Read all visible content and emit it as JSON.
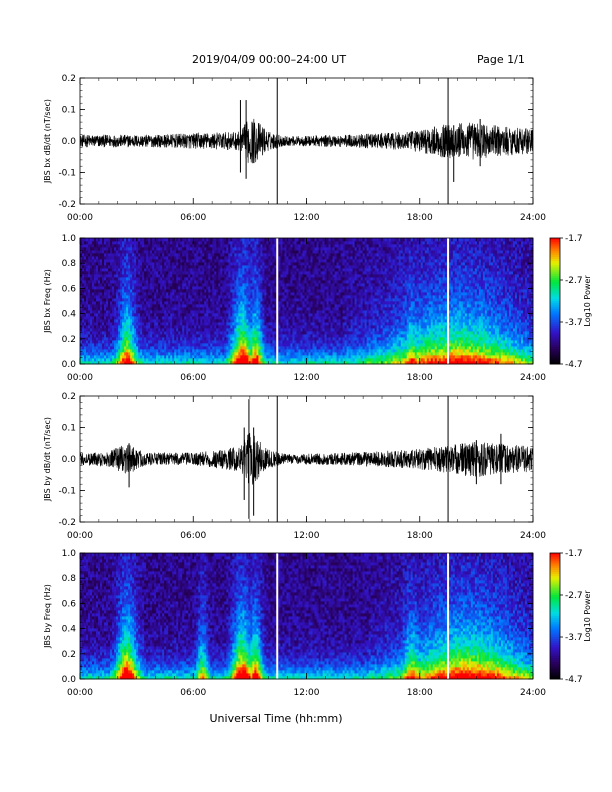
{
  "header": {
    "title": "2019/04/09   00:00–24:00 UT",
    "page": "Page 1/1"
  },
  "xlabel": "Universal Time (hh:mm)",
  "chart_data": [
    {
      "type": "line",
      "ylabel": "JBS bx dB/dt (nT/sec)",
      "xlim": [
        0,
        24
      ],
      "ylim": [
        -0.2,
        0.2
      ],
      "xticks": [
        "00:00",
        "06:00",
        "12:00",
        "18:00",
        "24:00"
      ],
      "yticks": [
        "-0.2",
        "-0.1",
        "0.0",
        "0.1",
        "0.2"
      ],
      "noise_envelope": {
        "hours": [
          0,
          2,
          4,
          6,
          8.5,
          9.0,
          9.3,
          10,
          11,
          14,
          16,
          17.5,
          19,
          20,
          21,
          22,
          24
        ],
        "amplitude": [
          0.02,
          0.02,
          0.02,
          0.025,
          0.03,
          0.08,
          0.07,
          0.03,
          0.015,
          0.02,
          0.025,
          0.03,
          0.05,
          0.06,
          0.06,
          0.05,
          0.04
        ]
      },
      "spikes": [
        {
          "hour": 8.5,
          "min": -0.1,
          "max": 0.13
        },
        {
          "hour": 8.8,
          "min": -0.12,
          "max": 0.13
        },
        {
          "hour": 10.45,
          "min": -0.2,
          "max": 0.2
        },
        {
          "hour": 19.5,
          "min": -0.2,
          "max": 0.2
        },
        {
          "hour": 19.8,
          "min": -0.13,
          "max": 0.05
        },
        {
          "hour": 21.2,
          "min": -0.08,
          "max": 0.07
        }
      ]
    },
    {
      "type": "heatmap",
      "ylabel": "JBS bx Freq (Hz)",
      "xlim": [
        0,
        24
      ],
      "ylim": [
        0,
        1.0
      ],
      "xticks": [
        "00:00",
        "06:00",
        "12:00",
        "18:00",
        "24:00"
      ],
      "yticks": [
        "0.0",
        "0.2",
        "0.4",
        "0.6",
        "0.8",
        "1.0"
      ],
      "colorbar": {
        "label": "Log10 Power",
        "ticks": [
          "-1.7",
          "-2.7",
          "-3.7",
          "-4.7"
        ],
        "min": -4.7,
        "max": -1.7
      },
      "gaps_hours": [
        10.45,
        19.5
      ],
      "activity_bands": [
        {
          "hour": 2.5,
          "width": 0.5,
          "level": 0.6
        },
        {
          "hour": 8.6,
          "width": 0.6,
          "level": 0.7
        },
        {
          "hour": 9.3,
          "width": 0.4,
          "level": 0.6
        },
        {
          "hour": 17.6,
          "width": 0.5,
          "level": 0.5
        },
        {
          "hour": 20.0,
          "width": 4.0,
          "level": 0.55
        }
      ]
    },
    {
      "type": "line",
      "ylabel": "JBS by dB/dt (nT/sec)",
      "xlim": [
        0,
        24
      ],
      "ylim": [
        -0.2,
        0.2
      ],
      "xticks": [
        "00:00",
        "06:00",
        "12:00",
        "18:00",
        "24:00"
      ],
      "yticks": [
        "-0.2",
        "-0.1",
        "0.0",
        "0.1",
        "0.2"
      ],
      "noise_envelope": {
        "hours": [
          0,
          1.5,
          2.5,
          3.5,
          6,
          8.5,
          9.0,
          9.4,
          10,
          11,
          14,
          16,
          17.5,
          19,
          20,
          21,
          22,
          24
        ],
        "amplitude": [
          0.02,
          0.025,
          0.05,
          0.02,
          0.02,
          0.04,
          0.09,
          0.07,
          0.03,
          0.015,
          0.02,
          0.025,
          0.03,
          0.04,
          0.05,
          0.06,
          0.05,
          0.04
        ]
      },
      "spikes": [
        {
          "hour": 2.6,
          "min": -0.09,
          "max": 0.05
        },
        {
          "hour": 8.7,
          "min": -0.13,
          "max": 0.1
        },
        {
          "hour": 8.95,
          "min": -0.19,
          "max": 0.19
        },
        {
          "hour": 9.2,
          "min": -0.18,
          "max": 0.1
        },
        {
          "hour": 10.45,
          "min": -0.2,
          "max": 0.2
        },
        {
          "hour": 19.5,
          "min": -0.2,
          "max": 0.2
        },
        {
          "hour": 21.0,
          "min": -0.08,
          "max": 0.06
        },
        {
          "hour": 22.3,
          "min": -0.08,
          "max": 0.08
        }
      ]
    },
    {
      "type": "heatmap",
      "ylabel": "JBS by Freq (Hz)",
      "xlim": [
        0,
        24
      ],
      "ylim": [
        0,
        1.0
      ],
      "xticks": [
        "00:00",
        "06:00",
        "12:00",
        "18:00",
        "24:00"
      ],
      "yticks": [
        "0.0",
        "0.2",
        "0.4",
        "0.6",
        "0.8",
        "1.0"
      ],
      "colorbar": {
        "label": "Log10 Power",
        "ticks": [
          "-1.7",
          "-2.7",
          "-3.7",
          "-4.7"
        ],
        "min": -4.7,
        "max": -1.7
      },
      "gaps_hours": [
        10.45,
        19.5
      ],
      "activity_bands": [
        {
          "hour": 2.5,
          "width": 0.6,
          "level": 0.7
        },
        {
          "hour": 8.6,
          "width": 0.6,
          "level": 0.7
        },
        {
          "hour": 9.3,
          "width": 0.4,
          "level": 0.6
        },
        {
          "hour": 6.5,
          "width": 0.3,
          "level": 0.4
        },
        {
          "hour": 17.6,
          "width": 0.6,
          "level": 0.5
        },
        {
          "hour": 20.5,
          "width": 3.5,
          "level": 0.6
        }
      ]
    }
  ]
}
